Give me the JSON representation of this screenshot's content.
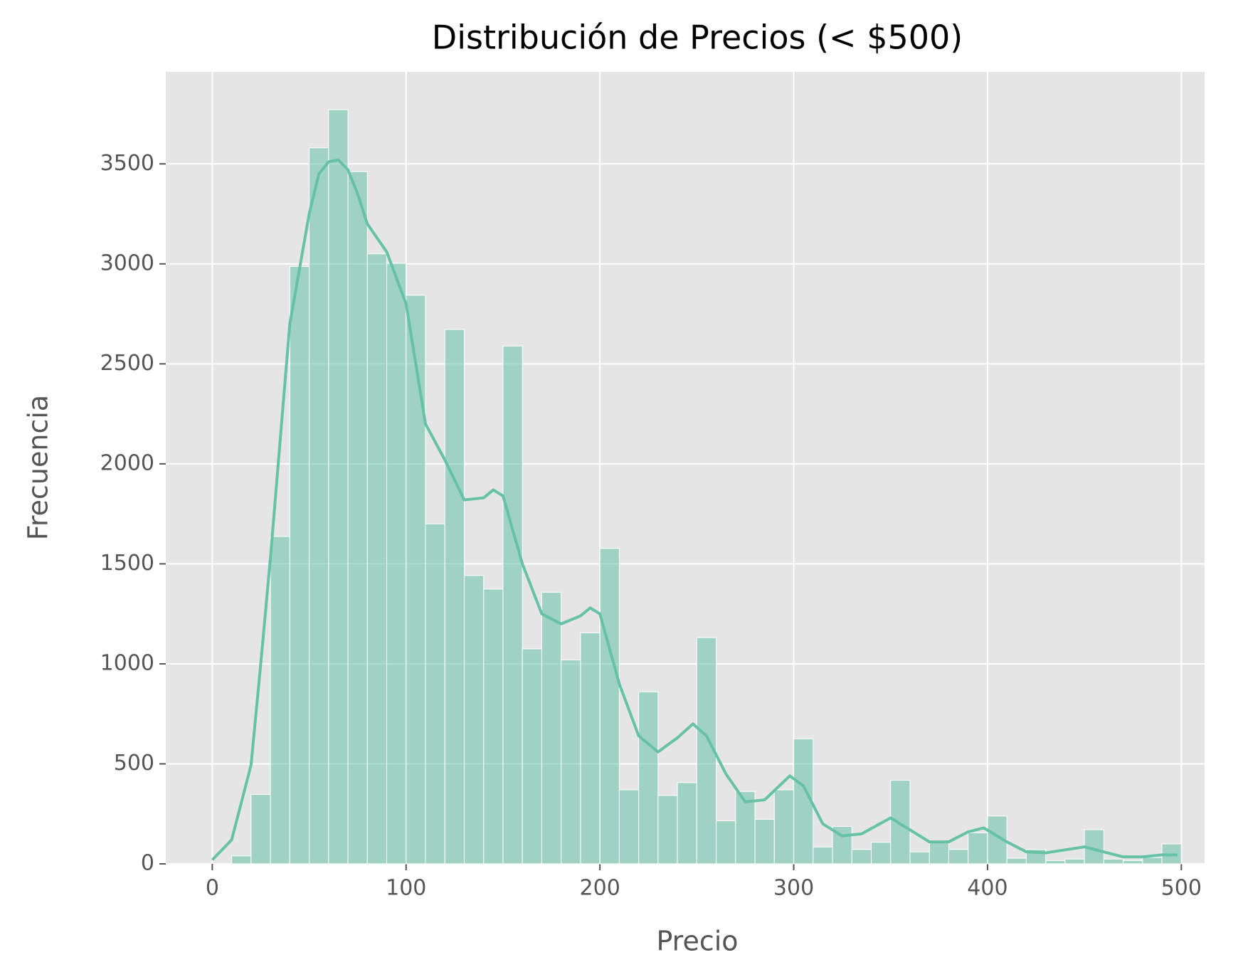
{
  "chart_data": {
    "type": "histogram",
    "title": "Distribución de Precios (< $500)",
    "x_label": "Precio",
    "y_label": "Frecuencia",
    "bins": [
      0,
      10,
      20,
      30,
      40,
      50,
      60,
      70,
      80,
      90,
      100,
      110,
      120,
      130,
      140,
      150,
      160,
      170,
      180,
      190,
      200,
      210,
      220,
      230,
      240,
      250,
      260,
      270,
      280,
      290,
      300,
      310,
      320,
      330,
      340,
      350,
      360,
      370,
      380,
      390,
      400,
      410,
      420,
      430,
      440,
      450,
      460,
      470,
      480,
      490,
      500
    ],
    "values": [
      0,
      40,
      347,
      1637,
      2987,
      3580,
      3771,
      3461,
      3050,
      3003,
      2843,
      1700,
      2672,
      1442,
      1374,
      2589,
      1075,
      1358,
      1020,
      1155,
      1577,
      370,
      860,
      342,
      406,
      1131,
      215,
      362,
      223,
      370,
      625,
      84,
      187,
      72,
      108,
      418,
      60,
      108,
      72,
      155,
      239,
      28,
      72,
      16,
      24,
      171,
      24,
      16,
      32,
      100
    ],
    "color": "#66c2a5",
    "kde": {
      "color": "#66c2a5",
      "x": [
        0,
        10,
        20,
        25,
        30,
        40,
        50,
        55,
        60,
        65,
        70,
        75,
        80,
        90,
        100,
        105,
        110,
        120,
        130,
        140,
        145,
        150,
        160,
        170,
        180,
        190,
        195,
        200,
        210,
        220,
        230,
        240,
        248,
        255,
        265,
        275,
        285,
        298,
        305,
        315,
        325,
        335,
        350,
        360,
        370,
        380,
        390,
        398,
        410,
        420,
        430,
        440,
        450,
        460,
        470,
        480,
        490,
        498
      ],
      "values": [
        20,
        120,
        494,
        1000,
        1530,
        2700,
        3250,
        3450,
        3510,
        3520,
        3470,
        3350,
        3200,
        3060,
        2800,
        2500,
        2200,
        2020,
        1820,
        1830,
        1870,
        1840,
        1500,
        1250,
        1200,
        1240,
        1280,
        1250,
        900,
        640,
        560,
        630,
        700,
        640,
        450,
        310,
        320,
        440,
        390,
        200,
        140,
        150,
        230,
        170,
        110,
        110,
        160,
        180,
        110,
        60,
        55,
        70,
        85,
        60,
        35,
        35,
        45,
        45
      ]
    },
    "xlim": [
      -24,
      512
    ],
    "ylim": [
      0,
      3960
    ],
    "xticks": [
      0,
      100,
      200,
      300,
      400,
      500
    ],
    "yticks": [
      0,
      500,
      1000,
      1500,
      2000,
      2500,
      3000,
      3500
    ],
    "grid": true
  }
}
